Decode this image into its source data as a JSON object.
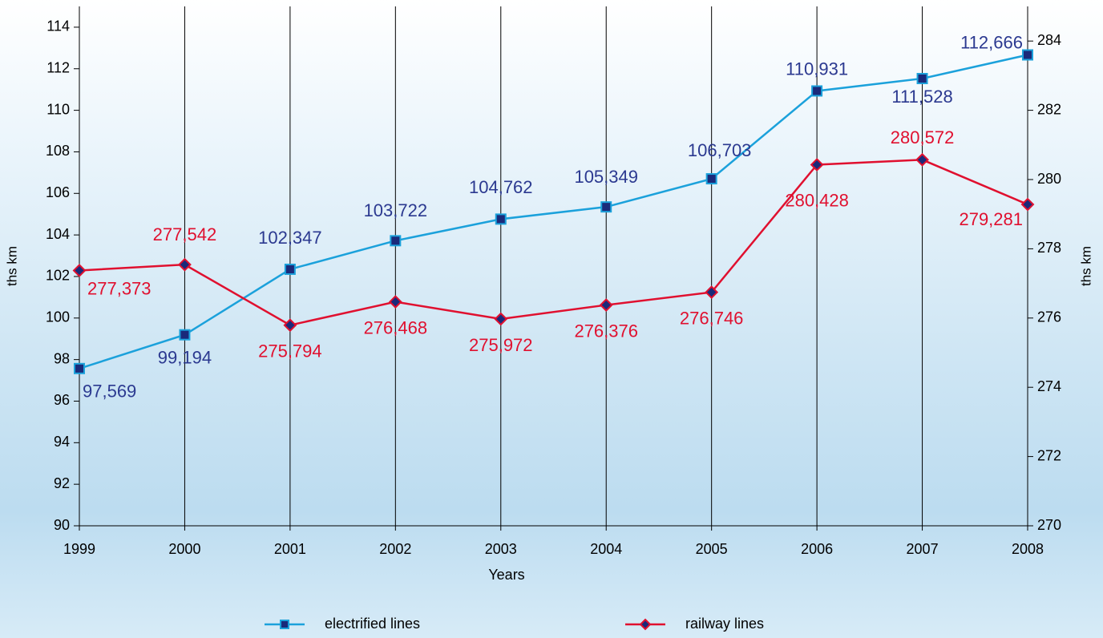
{
  "chart_data": {
    "type": "line",
    "x_label": "Years",
    "y_label": "ths km",
    "y2_label": "ths km",
    "categories": [
      "1999",
      "2000",
      "2001",
      "2002",
      "2003",
      "2004",
      "2005",
      "2006",
      "2007",
      "2008"
    ],
    "series": [
      {
        "name": "electrified lines",
        "color": "#1ba1db",
        "marker_color": "#1a2a7a",
        "label_color": "#2b3990",
        "marker": "square",
        "values": [
          97.569,
          99.194,
          102.347,
          103.722,
          104.762,
          105.349,
          106.703,
          110.931,
          111.528,
          112.666
        ],
        "value_labels": [
          "97,569",
          "99,194",
          "102,347",
          "103,722",
          "104,762",
          "105,349",
          "106,703",
          "110,931",
          "111,528",
          "112,666"
        ]
      },
      {
        "name": "railway lines",
        "color": "#e0102f",
        "marker_color": "#1a2a7a",
        "label_color": "#e0102f",
        "marker": "diamond",
        "axis": "y2",
        "values": [
          277.373,
          277.542,
          275.794,
          276.468,
          275.972,
          276.376,
          276.746,
          280.428,
          280.572,
          279.281
        ],
        "value_labels": [
          "277,373",
          "277,542",
          "275,794",
          "276,468",
          "275,972",
          "276,376",
          "276,746",
          "280,428",
          "280,572",
          "279,281"
        ]
      }
    ],
    "ylim": [
      90,
      115
    ],
    "yticks": [
      90,
      92,
      94,
      96,
      98,
      100,
      102,
      104,
      106,
      108,
      110,
      112,
      114
    ],
    "y2lim": [
      270,
      285
    ],
    "y2ticks": [
      270,
      272,
      274,
      276,
      278,
      280,
      282,
      284
    ],
    "grid": "x"
  }
}
